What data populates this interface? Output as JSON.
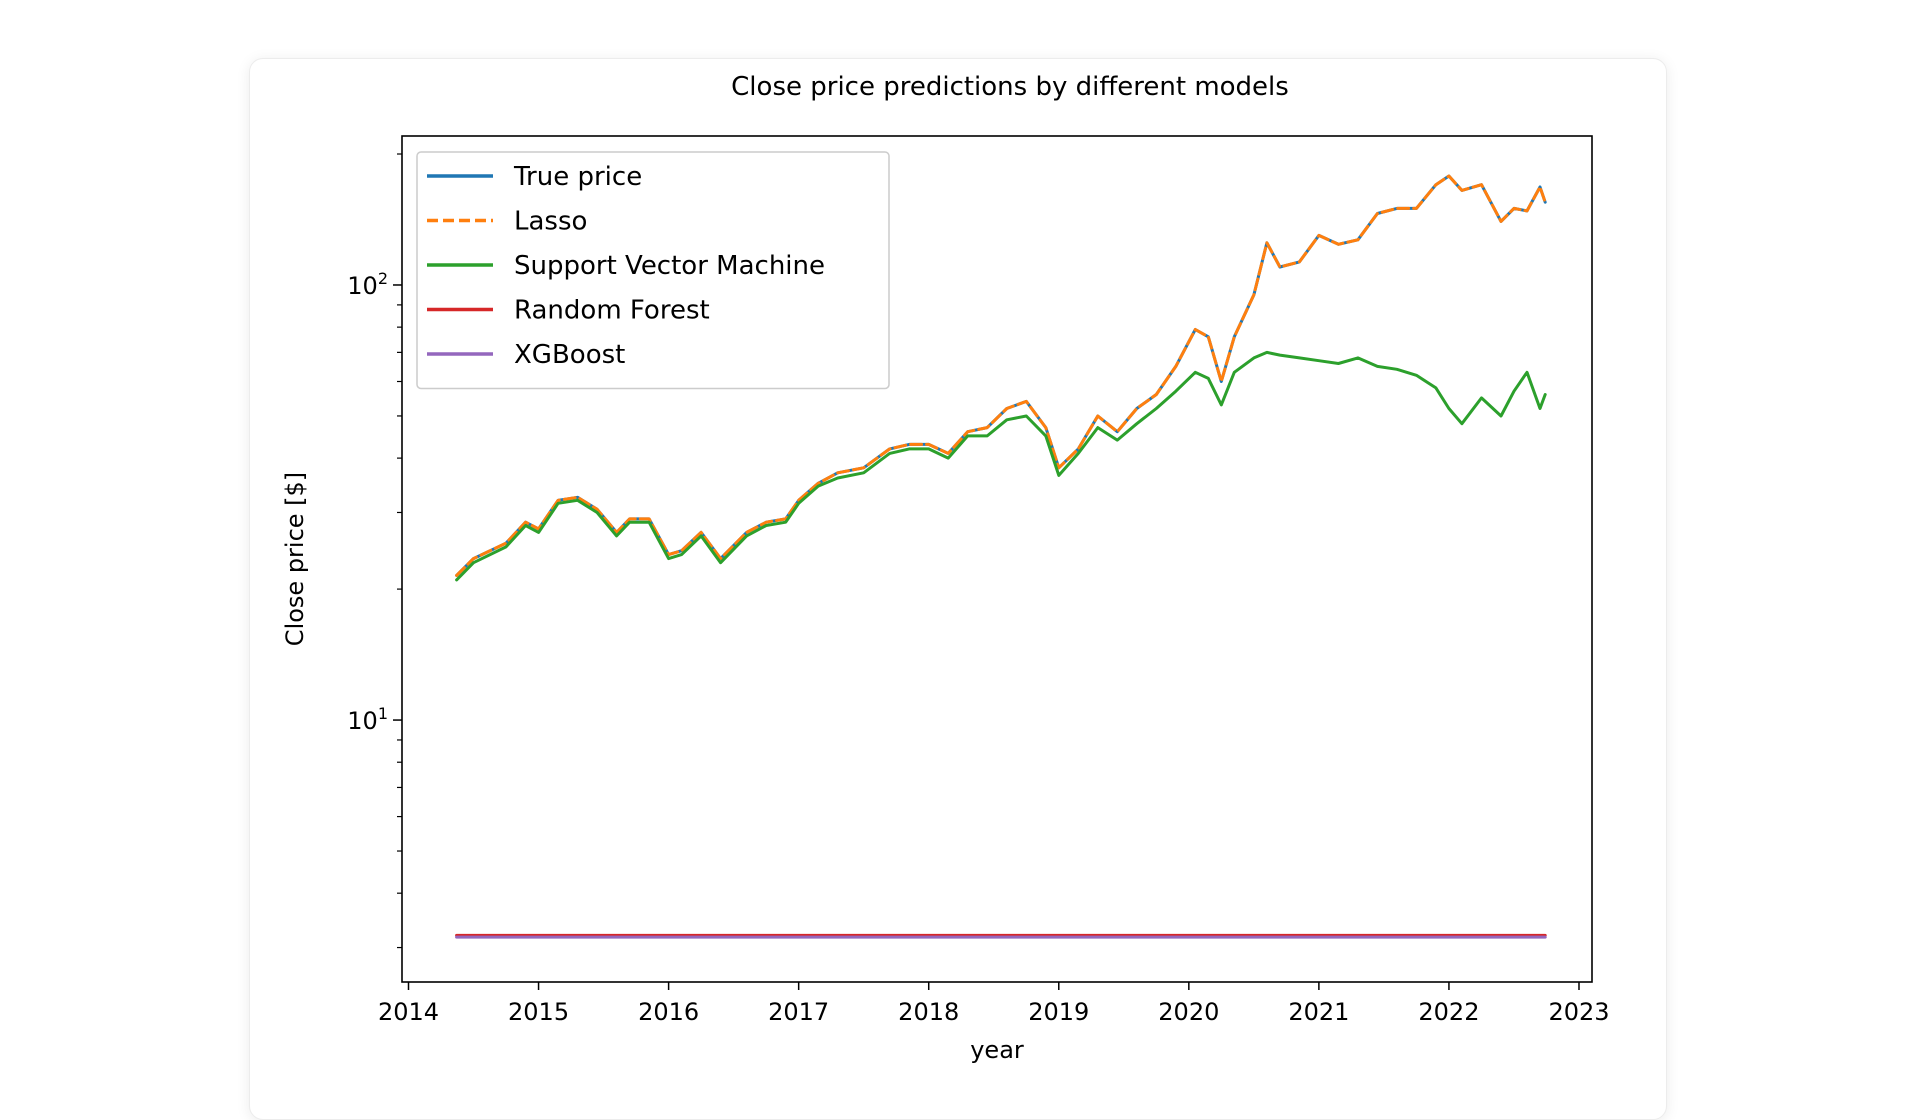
{
  "chart_data": {
    "type": "line",
    "title": "Close price predictions by different models",
    "xlabel": "year",
    "ylabel": "Close price [$]",
    "yscale": "log",
    "xlim": [
      2013.95,
      2023.1
    ],
    "ylim": [
      2.5,
      220
    ],
    "grid": false,
    "legend_position": "top-left",
    "x_ticks": [
      "2014",
      "2015",
      "2016",
      "2017",
      "2018",
      "2019",
      "2020",
      "2021",
      "2022",
      "2023"
    ],
    "y_ticks": [
      {
        "value": 10,
        "base": "10",
        "exp": "1"
      },
      {
        "value": 100,
        "base": "10",
        "exp": "2"
      }
    ],
    "series": [
      {
        "name": "True price",
        "color": "#1f77b4",
        "style": "solid",
        "x": [
          2014.37,
          2014.5,
          2014.75,
          2014.9,
          2015.0,
          2015.15,
          2015.3,
          2015.45,
          2015.6,
          2015.7,
          2015.85,
          2016.0,
          2016.1,
          2016.25,
          2016.4,
          2016.6,
          2016.75,
          2016.9,
          2017.0,
          2017.15,
          2017.3,
          2017.5,
          2017.7,
          2017.85,
          2018.0,
          2018.15,
          2018.3,
          2018.45,
          2018.6,
          2018.75,
          2018.9,
          2019.0,
          2019.15,
          2019.3,
          2019.45,
          2019.6,
          2019.75,
          2019.9,
          2020.05,
          2020.15,
          2020.25,
          2020.35,
          2020.5,
          2020.6,
          2020.7,
          2020.85,
          2021.0,
          2021.15,
          2021.3,
          2021.45,
          2021.6,
          2021.75,
          2021.9,
          2022.0,
          2022.1,
          2022.25,
          2022.4,
          2022.5,
          2022.6,
          2022.7,
          2022.74
        ],
        "y": [
          21.5,
          23.5,
          25.5,
          28.5,
          27.5,
          32,
          32.5,
          30.5,
          27,
          29,
          29,
          24,
          24.5,
          27,
          23.5,
          27,
          28.5,
          29,
          32,
          35,
          37,
          38,
          42,
          43,
          43,
          41,
          46,
          47,
          52,
          54,
          47,
          38,
          42,
          50,
          46,
          52,
          56,
          65,
          79,
          76,
          60,
          76,
          95,
          125,
          110,
          113,
          130,
          124,
          127,
          146,
          150,
          150,
          170,
          178,
          165,
          170,
          140,
          150,
          148,
          168,
          155
        ]
      },
      {
        "name": "Lasso",
        "color": "#ff7f0e",
        "style": "dashed",
        "x": [
          2014.37,
          2014.5,
          2014.75,
          2014.9,
          2015.0,
          2015.15,
          2015.3,
          2015.45,
          2015.6,
          2015.7,
          2015.85,
          2016.0,
          2016.1,
          2016.25,
          2016.4,
          2016.6,
          2016.75,
          2016.9,
          2017.0,
          2017.15,
          2017.3,
          2017.5,
          2017.7,
          2017.85,
          2018.0,
          2018.15,
          2018.3,
          2018.45,
          2018.6,
          2018.75,
          2018.9,
          2019.0,
          2019.15,
          2019.3,
          2019.45,
          2019.6,
          2019.75,
          2019.9,
          2020.05,
          2020.15,
          2020.25,
          2020.35,
          2020.5,
          2020.6,
          2020.7,
          2020.85,
          2021.0,
          2021.15,
          2021.3,
          2021.45,
          2021.6,
          2021.75,
          2021.9,
          2022.0,
          2022.1,
          2022.25,
          2022.4,
          2022.5,
          2022.6,
          2022.7,
          2022.74
        ],
        "y": [
          21.5,
          23.5,
          25.5,
          28.5,
          27.5,
          32,
          32.5,
          30.5,
          27,
          29,
          29,
          24,
          24.5,
          27,
          23.5,
          27,
          28.5,
          29,
          32,
          35,
          37,
          38,
          42,
          43,
          43,
          41,
          46,
          47,
          52,
          54,
          47,
          38,
          42,
          50,
          46,
          52,
          56,
          65,
          79,
          76,
          60,
          76,
          95,
          125,
          110,
          113,
          130,
          124,
          127,
          146,
          150,
          150,
          170,
          178,
          165,
          170,
          140,
          150,
          148,
          168,
          155
        ]
      },
      {
        "name": "Support Vector Machine",
        "color": "#2ca02c",
        "style": "solid",
        "x": [
          2014.37,
          2014.5,
          2014.75,
          2014.9,
          2015.0,
          2015.15,
          2015.3,
          2015.45,
          2015.6,
          2015.7,
          2015.85,
          2016.0,
          2016.1,
          2016.25,
          2016.4,
          2016.6,
          2016.75,
          2016.9,
          2017.0,
          2017.15,
          2017.3,
          2017.5,
          2017.7,
          2017.85,
          2018.0,
          2018.15,
          2018.3,
          2018.45,
          2018.6,
          2018.75,
          2018.9,
          2019.0,
          2019.15,
          2019.3,
          2019.45,
          2019.6,
          2019.75,
          2019.9,
          2020.05,
          2020.15,
          2020.25,
          2020.35,
          2020.5,
          2020.6,
          2020.7,
          2020.85,
          2021.0,
          2021.15,
          2021.3,
          2021.45,
          2021.6,
          2021.75,
          2021.9,
          2022.0,
          2022.1,
          2022.25,
          2022.4,
          2022.5,
          2022.6,
          2022.7,
          2022.74
        ],
        "y": [
          21,
          23,
          25,
          28,
          27,
          31.5,
          32,
          30,
          26.5,
          28.5,
          28.5,
          23.5,
          24,
          26.5,
          23,
          26.5,
          28,
          28.5,
          31.5,
          34.5,
          36,
          37,
          41,
          42,
          42,
          40,
          45,
          45,
          49,
          50,
          45,
          36.5,
          41,
          47,
          44,
          48,
          52,
          57,
          63,
          61,
          53,
          63,
          68,
          70,
          69,
          68,
          67,
          66,
          68,
          65,
          64,
          62,
          58,
          52,
          48,
          55,
          50,
          57,
          63,
          52,
          56
        ]
      },
      {
        "name": "Random Forest",
        "color": "#d62728",
        "style": "solid",
        "x": [
          2014.37,
          2022.74
        ],
        "y": [
          3.2,
          3.2
        ]
      },
      {
        "name": "XGBoost",
        "color": "#9467bd",
        "style": "solid",
        "x": [
          2014.37,
          2022.74
        ],
        "y": [
          3.17,
          3.17
        ]
      }
    ]
  }
}
